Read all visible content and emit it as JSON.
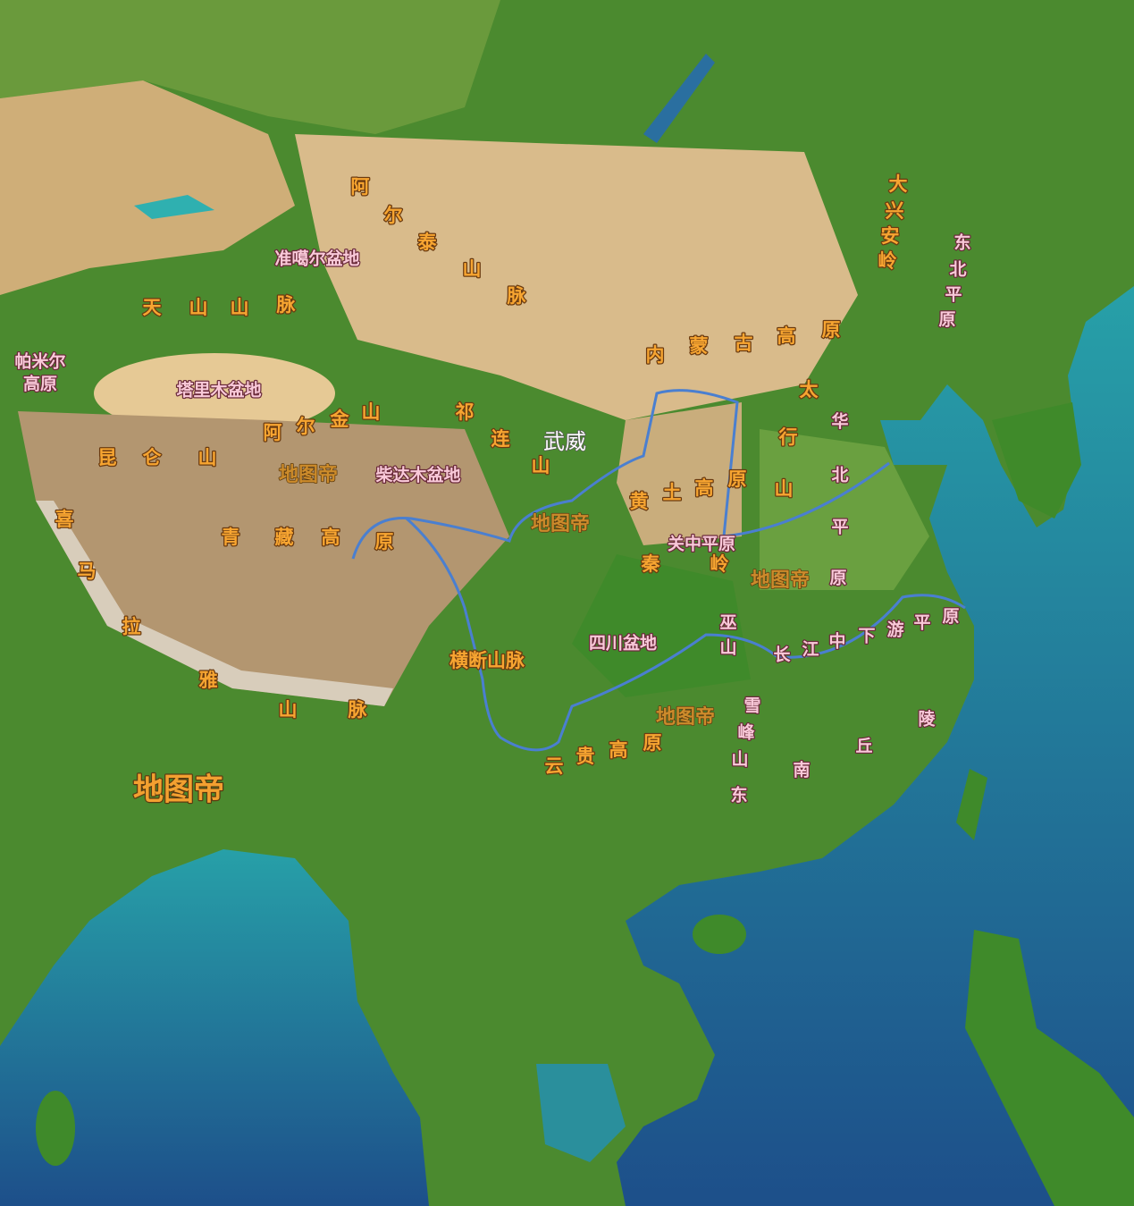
{
  "labels": [
    {
      "text": "阿尔泰山脉",
      "style": "orange"
    },
    {
      "text": "准噶尔盆地",
      "style": "pink"
    },
    {
      "text": "天山山脉",
      "style": "orange"
    },
    {
      "text": "帕米尔",
      "style": "pink"
    },
    {
      "text": "高原",
      "style": "pink"
    },
    {
      "text": "塔里木盆地",
      "style": "pink"
    },
    {
      "text": "阿尔金山",
      "style": "orange"
    },
    {
      "text": "祁连山",
      "style": "orange"
    },
    {
      "text": "武威",
      "style": "white"
    },
    {
      "text": "昆仑山",
      "style": "orange"
    },
    {
      "text": "地图帝",
      "style": "wm"
    },
    {
      "text": "柴达木盆地",
      "style": "pink"
    },
    {
      "text": "喜马拉雅山脉",
      "style": "orange"
    },
    {
      "text": "青藏高原",
      "style": "orange"
    },
    {
      "text": "地图帝",
      "style": "wm"
    },
    {
      "text": "黄土高原",
      "style": "orange"
    },
    {
      "text": "内蒙古高原",
      "style": "orange"
    },
    {
      "text": "太行山",
      "style": "orange"
    },
    {
      "text": "华北平原",
      "style": "pink"
    },
    {
      "text": "关中平原",
      "style": "pink"
    },
    {
      "text": "秦岭",
      "style": "orange"
    },
    {
      "text": "地图帝",
      "style": "wm"
    },
    {
      "text": "巫山",
      "style": "pink"
    },
    {
      "text": "四川盆地",
      "style": "pink"
    },
    {
      "text": "长江中下游平原",
      "style": "pink"
    },
    {
      "text": "横断山脉",
      "style": "orange"
    },
    {
      "text": "地图帝",
      "style": "wm"
    },
    {
      "text": "雪峰山",
      "style": "pink"
    },
    {
      "text": "东南丘陵",
      "style": "pink"
    },
    {
      "text": "云贵高原",
      "style": "orange"
    },
    {
      "text": "地图帝",
      "style": "wmbig"
    },
    {
      "text": "大兴安岭",
      "style": "orange"
    },
    {
      "text": "东北平原",
      "style": "pink"
    }
  ]
}
